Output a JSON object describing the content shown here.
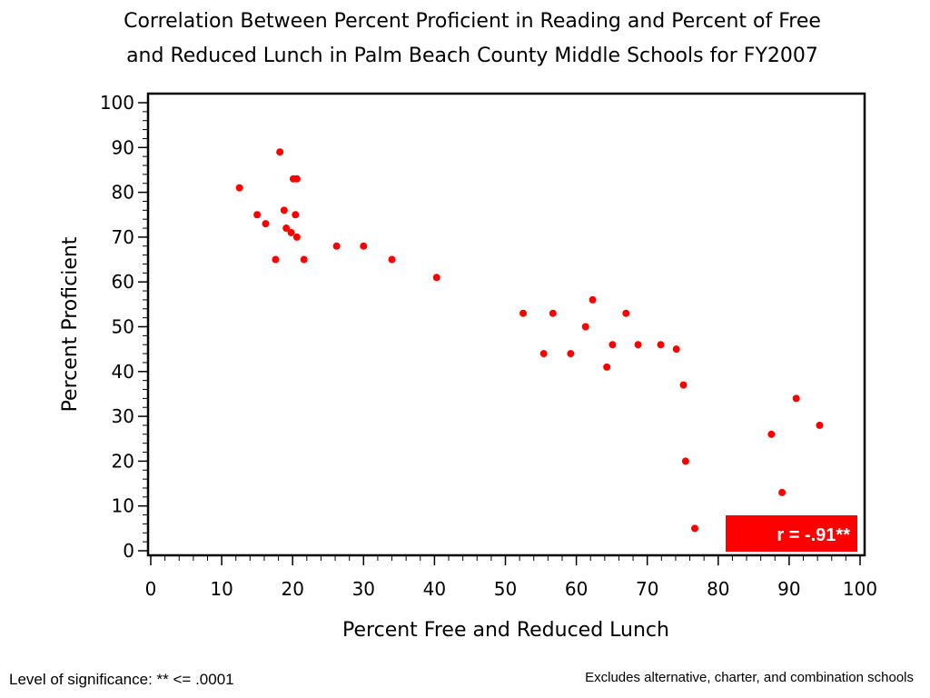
{
  "chart_data": {
    "type": "scatter",
    "title_lines": [
      "Correlation Between Percent Proficient in Reading and Percent of Free",
      "and Reduced Lunch in Palm Beach County Middle Schools for FY2007"
    ],
    "xlabel": "Percent Free and Reduced Lunch",
    "ylabel": "Percent Proficient",
    "xlim": [
      0,
      100
    ],
    "ylim": [
      0,
      100
    ],
    "x_ticks": [
      0,
      10,
      20,
      30,
      40,
      50,
      60,
      70,
      80,
      90,
      100
    ],
    "y_ticks": [
      0,
      10,
      20,
      30,
      40,
      50,
      60,
      70,
      80,
      90,
      100
    ],
    "grid": false,
    "point_color": "#ff0000",
    "points": [
      {
        "x": 12.5,
        "y": 81
      },
      {
        "x": 15.0,
        "y": 75
      },
      {
        "x": 16.2,
        "y": 73
      },
      {
        "x": 17.6,
        "y": 65
      },
      {
        "x": 18.2,
        "y": 89
      },
      {
        "x": 18.8,
        "y": 76
      },
      {
        "x": 19.1,
        "y": 72
      },
      {
        "x": 19.8,
        "y": 71
      },
      {
        "x": 20.1,
        "y": 83
      },
      {
        "x": 20.6,
        "y": 83
      },
      {
        "x": 20.4,
        "y": 75
      },
      {
        "x": 20.6,
        "y": 70
      },
      {
        "x": 21.6,
        "y": 65
      },
      {
        "x": 26.2,
        "y": 68
      },
      {
        "x": 30.0,
        "y": 68
      },
      {
        "x": 34.0,
        "y": 65
      },
      {
        "x": 40.3,
        "y": 61
      },
      {
        "x": 52.5,
        "y": 53
      },
      {
        "x": 55.4,
        "y": 44
      },
      {
        "x": 56.7,
        "y": 53
      },
      {
        "x": 59.2,
        "y": 44
      },
      {
        "x": 61.3,
        "y": 50
      },
      {
        "x": 62.3,
        "y": 56
      },
      {
        "x": 64.3,
        "y": 41
      },
      {
        "x": 65.1,
        "y": 46
      },
      {
        "x": 67.0,
        "y": 53
      },
      {
        "x": 68.7,
        "y": 46
      },
      {
        "x": 71.9,
        "y": 46
      },
      {
        "x": 74.1,
        "y": 45
      },
      {
        "x": 75.1,
        "y": 37
      },
      {
        "x": 75.4,
        "y": 20
      },
      {
        "x": 76.7,
        "y": 5
      },
      {
        "x": 87.5,
        "y": 26
      },
      {
        "x": 89.0,
        "y": 13
      },
      {
        "x": 91.0,
        "y": 34
      },
      {
        "x": 94.3,
        "y": 28
      }
    ],
    "annotation": {
      "text": "r = -.91**",
      "color": "#ff0000",
      "placement": "bottom-right"
    }
  },
  "footnotes": {
    "significance": "Level of significance: ** <= .0001",
    "exclusions": "Excludes alternative, charter, and combination schools"
  }
}
